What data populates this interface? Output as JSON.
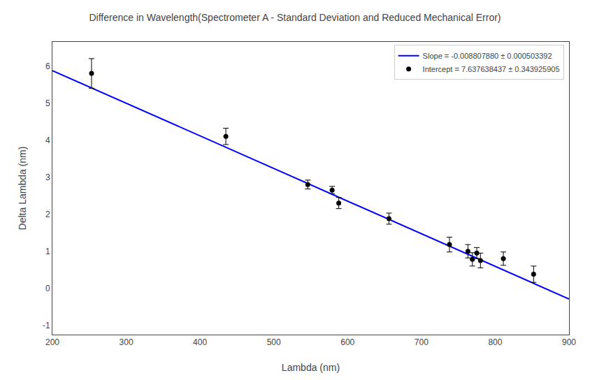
{
  "chart_data": {
    "type": "scatter",
    "title": "Difference in Wavelength(Spectrometer A - Standard Deviation and Reduced Mechanical Error)",
    "x_label": "Lambda (nm)",
    "y_label": "Delta Lambda (nm)",
    "series": [
      {
        "name": "Slope = -0.008807880 ± 0.000503392",
        "type": "line",
        "color": "#0000ff",
        "line_style": "solid",
        "x": [
          200,
          900
        ],
        "values": [
          5.876062437,
          -0.289453563
        ]
      },
      {
        "name": "Intercept = 7.637638437 ± 0.343925905",
        "type": "scatter",
        "color": "black",
        "marker": "circle",
        "x": [
          253,
          435,
          546,
          579,
          588,
          656,
          738,
          763,
          769,
          775,
          780,
          811,
          852
        ],
        "values": [
          5.8,
          4.1,
          2.8,
          2.65,
          2.3,
          1.88,
          1.18,
          1.0,
          0.78,
          0.95,
          0.75,
          0.8,
          0.38
        ],
        "errors": [
          0.4,
          0.22,
          0.12,
          0.1,
          0.15,
          0.15,
          0.2,
          0.18,
          0.18,
          0.15,
          0.2,
          0.18,
          0.22
        ]
      }
    ],
    "xlim": [
      200,
      900
    ],
    "ylim": [
      -1.25,
      6.65
    ],
    "xticks": [
      200,
      300,
      400,
      500,
      600,
      700,
      800,
      900
    ],
    "yticks": [
      -1,
      0,
      1,
      2,
      3,
      4,
      5,
      6
    ],
    "grid": false,
    "legend": "upper right"
  }
}
